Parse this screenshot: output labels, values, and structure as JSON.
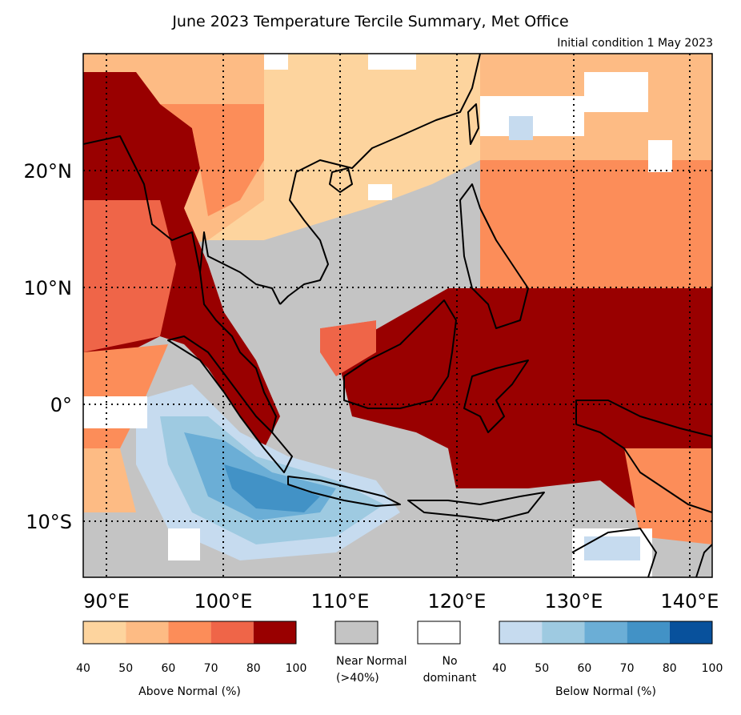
{
  "title": "June 2023 Temperature Tercile Summary, Met Office",
  "subtitle": "Initial condition 1 May 2023",
  "map": {
    "lon_range": [
      88,
      142
    ],
    "lat_range": [
      -15,
      30
    ],
    "lon_ticks": [
      {
        "value": 90,
        "label": "90°E"
      },
      {
        "value": 100,
        "label": "100°E"
      },
      {
        "value": 110,
        "label": "110°E"
      },
      {
        "value": 120,
        "label": "120°E"
      },
      {
        "value": 130,
        "label": "130°E"
      },
      {
        "value": 140,
        "label": "140°E"
      }
    ],
    "lat_ticks": [
      {
        "value": 20,
        "label": "20°N"
      },
      {
        "value": 10,
        "label": "10°N"
      },
      {
        "value": 0,
        "label": "0°"
      },
      {
        "value": -10,
        "label": "10°S"
      }
    ],
    "gridlines": "dotted"
  },
  "legend": {
    "above": {
      "caption": "Above Normal (%)",
      "ticks": [
        "40",
        "50",
        "60",
        "70",
        "80",
        "100"
      ],
      "colors": [
        "#fdd49e",
        "#fdbb84",
        "#fc8d59",
        "#ef6548",
        "#990000"
      ]
    },
    "near_normal": {
      "caption_line1": "Near Normal",
      "caption_line2": "(>40%)",
      "color": "#c4c4c4"
    },
    "no_dominant": {
      "caption_line1": "No",
      "caption_line2": "dominant",
      "color": "#ffffff"
    },
    "below": {
      "caption": "Below Normal (%)",
      "ticks": [
        "40",
        "50",
        "60",
        "70",
        "80",
        "100"
      ],
      "colors": [
        "#c6dbef",
        "#9ecae1",
        "#6baed6",
        "#4292c6",
        "#08519c"
      ]
    }
  },
  "colors": {
    "frame": "#000000",
    "coast": "#000000"
  }
}
